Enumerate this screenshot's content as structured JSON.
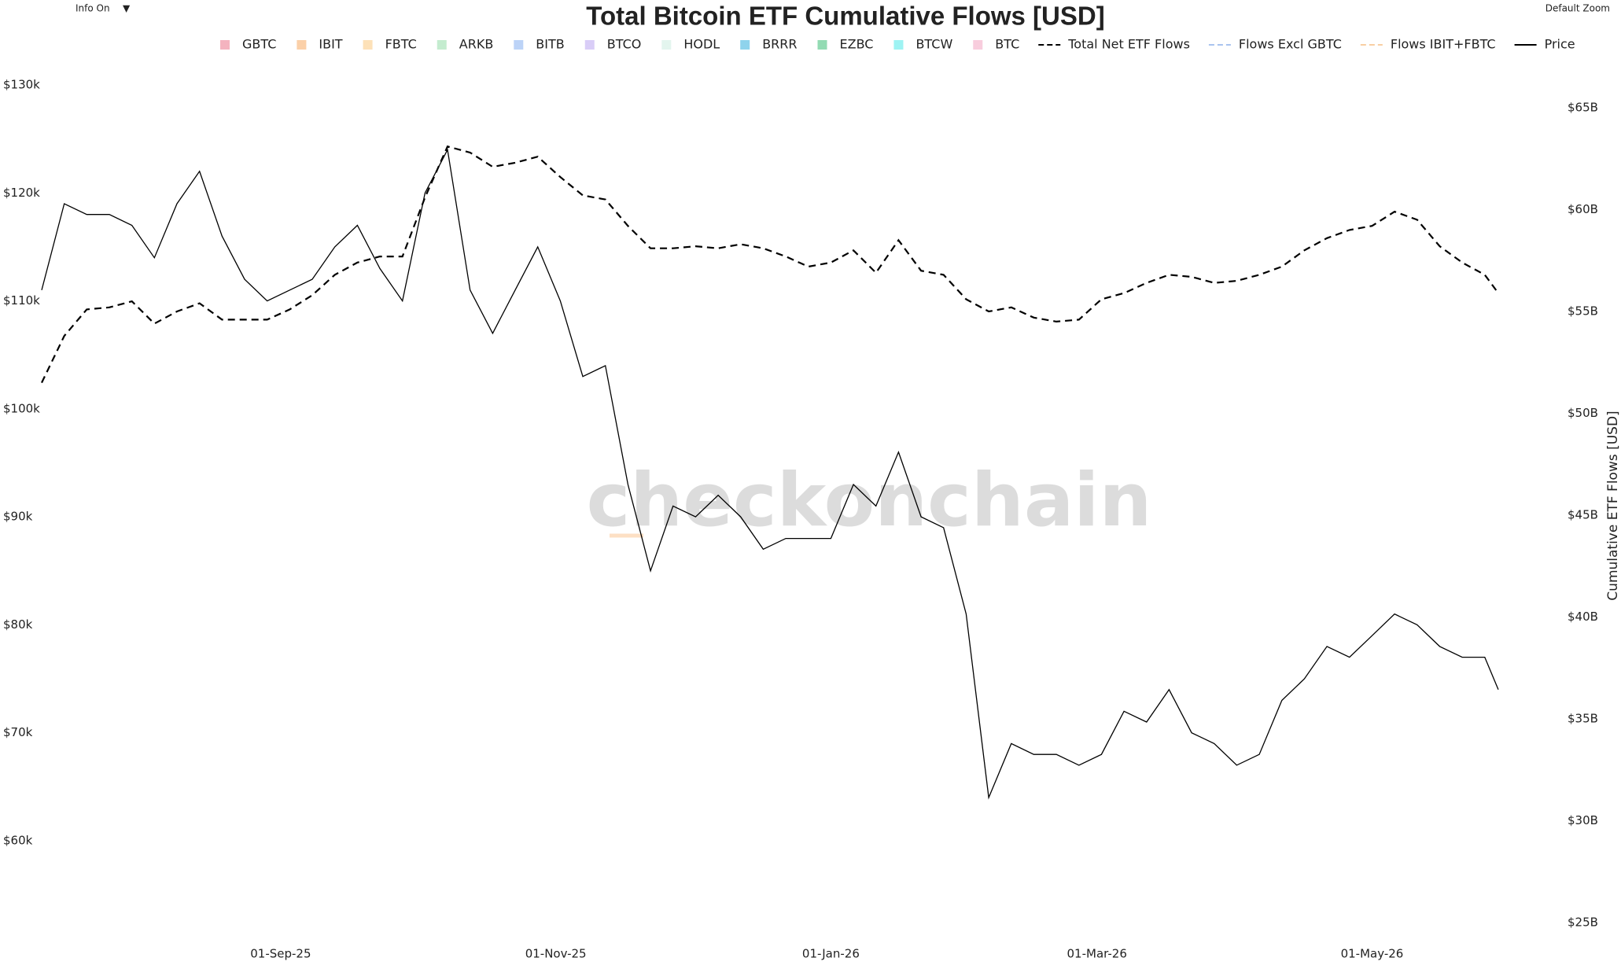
{
  "chart_data": {
    "type": "line",
    "title": "Total Bitcoin ETF Cumulative Flows [USD]",
    "y2label": "Cumulative ETF Flows [USD]",
    "watermark": "checkonchain",
    "controls": {
      "info": "Info On",
      "menu": "▼",
      "zoom": "Default Zoom"
    },
    "x": [
      "2025-07-10",
      "2025-07-15",
      "2025-07-20",
      "2025-07-25",
      "2025-07-30",
      "2025-08-04",
      "2025-08-09",
      "2025-08-14",
      "2025-08-19",
      "2025-08-24",
      "2025-08-29",
      "2025-09-03",
      "2025-09-08",
      "2025-09-13",
      "2025-09-18",
      "2025-09-23",
      "2025-09-28",
      "2025-10-03",
      "2025-10-08",
      "2025-10-13",
      "2025-10-18",
      "2025-10-23",
      "2025-10-28",
      "2025-11-02",
      "2025-11-07",
      "2025-11-12",
      "2025-11-17",
      "2025-11-22",
      "2025-11-27",
      "2025-12-02",
      "2025-12-07",
      "2025-12-12",
      "2025-12-17",
      "2025-12-22",
      "2025-12-27",
      "2026-01-01",
      "2026-01-06",
      "2026-01-11",
      "2026-01-16",
      "2026-01-21",
      "2026-01-26",
      "2026-01-31",
      "2026-02-05",
      "2026-02-10",
      "2026-02-15",
      "2026-02-20",
      "2026-02-25",
      "2026-03-02",
      "2026-03-07",
      "2026-03-12",
      "2026-03-17",
      "2026-03-22",
      "2026-03-27",
      "2026-04-01",
      "2026-04-06",
      "2026-04-11",
      "2026-04-16",
      "2026-04-21",
      "2026-04-26",
      "2026-05-01",
      "2026-05-06",
      "2026-05-11",
      "2026-05-16",
      "2026-05-21",
      "2026-05-26",
      "2026-05-29"
    ],
    "series": [
      {
        "name": "Total Net ETF Flows",
        "color": "#000000",
        "dash": true,
        "axis": "y2",
        "values": [
          51500000000,
          53800000000,
          55100000000,
          55200000000,
          55500000000,
          54400000000,
          55000000000,
          55400000000,
          54600000000,
          54600000000,
          54600000000,
          55100000000,
          55800000000,
          56800000000,
          57400000000,
          57700000000,
          57700000000,
          60600000000,
          63100000000,
          62800000000,
          62100000000,
          62300000000,
          62600000000,
          61600000000,
          60700000000,
          60500000000,
          59200000000,
          58100000000,
          58100000000,
          58200000000,
          58100000000,
          58300000000,
          58100000000,
          57700000000,
          57200000000,
          57400000000,
          58000000000,
          56900000000,
          58500000000,
          57000000000,
          56800000000,
          55600000000,
          55000000000,
          55200000000,
          54700000000,
          54500000000,
          54600000000,
          55600000000,
          55900000000,
          56400000000,
          56800000000,
          56700000000,
          56400000000,
          56500000000,
          56800000000,
          57200000000,
          58000000000,
          58600000000,
          59000000000,
          59200000000,
          59900000000,
          59500000000,
          58200000000,
          57400000000,
          56800000000,
          55900000000
        ]
      },
      {
        "name": "Price",
        "color": "#000000",
        "dash": false,
        "axis": "y",
        "values": [
          111000,
          119000,
          118000,
          118000,
          117000,
          114000,
          119000,
          122000,
          116000,
          112000,
          110000,
          111000,
          112000,
          115000,
          117000,
          113000,
          110000,
          120000,
          124000,
          111000,
          107000,
          111000,
          115000,
          110000,
          103000,
          104000,
          93000,
          85000,
          91000,
          90000,
          92000,
          90000,
          87000,
          88000,
          88000,
          88000,
          93000,
          91000,
          96000,
          90000,
          89000,
          81000,
          64000,
          69000,
          68000,
          68000,
          67000,
          68000,
          72000,
          71000,
          74000,
          70000,
          69000,
          67000,
          68000,
          73000,
          75000,
          78000,
          77000,
          79000,
          81000,
          80000,
          78000,
          77000,
          77000,
          74000
        ]
      }
    ],
    "inactive_series": [
      {
        "name": "GBTC",
        "color": "#f4b3bf",
        "marker": "square"
      },
      {
        "name": "IBIT",
        "color": "#fbd0a8",
        "marker": "square"
      },
      {
        "name": "FBTC",
        "color": "#fde1b8",
        "marker": "square"
      },
      {
        "name": "ARKB",
        "color": "#c4eccf",
        "marker": "square"
      },
      {
        "name": "BITB",
        "color": "#bcd3f7",
        "marker": "square"
      },
      {
        "name": "BTCO",
        "color": "#d9cdf7",
        "marker": "square"
      },
      {
        "name": "HODL",
        "color": "#e3f5ee",
        "marker": "square"
      },
      {
        "name": "BRRR",
        "color": "#8fd3ec",
        "marker": "square"
      },
      {
        "name": "EZBC",
        "color": "#93dbb3",
        "marker": "square"
      },
      {
        "name": "BTCW",
        "color": "#9ef3f3",
        "marker": "square"
      },
      {
        "name": "BTC",
        "color": "#f8cddd",
        "marker": "square"
      },
      {
        "name": "Flows Excl GBTC",
        "color": "#a9c3ef",
        "marker": "dash"
      },
      {
        "name": "Flows IBIT+FBTC",
        "color": "#f8cfa3",
        "marker": "dash"
      }
    ],
    "xlim": [
      "2025-07-10",
      "2026-05-29"
    ],
    "xticks": [
      {
        "value": "2025-09-01",
        "label": "01-Sep-25"
      },
      {
        "value": "2025-11-01",
        "label": "01-Nov-25"
      },
      {
        "value": "2026-01-01",
        "label": "01-Jan-26"
      },
      {
        "value": "2026-03-01",
        "label": "01-Mar-26"
      },
      {
        "value": "2026-05-01",
        "label": "01-May-26"
      }
    ],
    "ylim": [
      60000,
      130000
    ],
    "yticks": [
      {
        "value": 60000,
        "label": "$60k"
      },
      {
        "value": 70000,
        "label": "$70k"
      },
      {
        "value": 80000,
        "label": "$80k"
      },
      {
        "value": 90000,
        "label": "$90k"
      },
      {
        "value": 100000,
        "label": "$100k"
      },
      {
        "value": 110000,
        "label": "$110k"
      },
      {
        "value": 120000,
        "label": "$120k"
      },
      {
        "value": 130000,
        "label": "$130k"
      }
    ],
    "y2lim": [
      25000000000,
      65000000000
    ],
    "y2ticks": [
      {
        "value": 25000000000,
        "label": "$25B"
      },
      {
        "value": 30000000000,
        "label": "$30B"
      },
      {
        "value": 35000000000,
        "label": "$35B"
      },
      {
        "value": 40000000000,
        "label": "$40B"
      },
      {
        "value": 45000000000,
        "label": "$45B"
      },
      {
        "value": 50000000000,
        "label": "$50B"
      },
      {
        "value": 55000000000,
        "label": "$55B"
      },
      {
        "value": 60000000000,
        "label": "$60B"
      },
      {
        "value": 65000000000,
        "label": "$65B"
      }
    ],
    "grid": false
  }
}
